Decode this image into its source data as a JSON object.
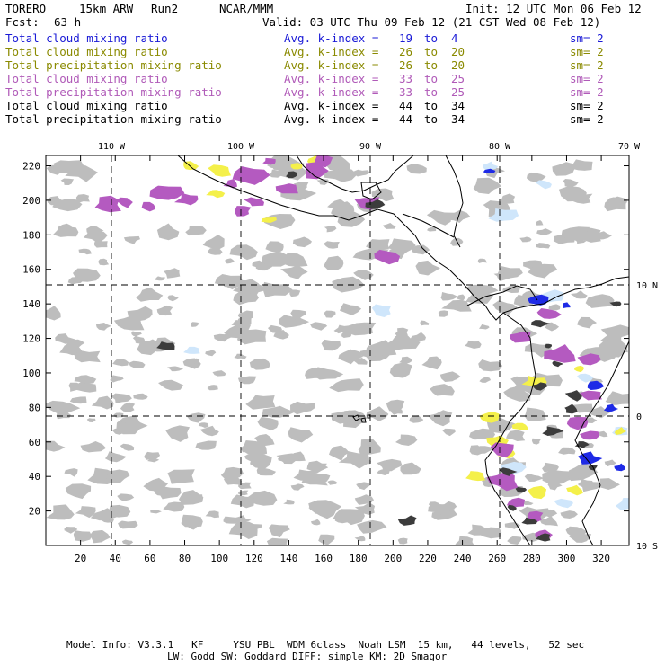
{
  "header": {
    "model": "TORERO",
    "resolution": "15km ARW",
    "run": "Run2",
    "org": "NCAR/MMM",
    "init": "Init: 12 UTC Mon 06 Feb 12",
    "fcst_label": "Fcst:",
    "fcst_value": "63 h",
    "valid": "Valid: 03 UTC Thu 09 Feb 12 (21 CST Wed 08 Feb 12)"
  },
  "legend": [
    {
      "field": "Total cloud mixing ratio",
      "avg": "Avg. k-index =",
      "k1": "19",
      "to": "to",
      "k2": "4",
      "sm": "sm= 2",
      "color": "#1a1ad6"
    },
    {
      "field": "Total cloud mixing ratio",
      "avg": "Avg. k-index =",
      "k1": "26",
      "to": "to",
      "k2": "20",
      "sm": "sm= 2",
      "color": "#8a8a00"
    },
    {
      "field": "Total precipitation mixing ratio",
      "avg": "Avg. k-index =",
      "k1": "26",
      "to": "to",
      "k2": "20",
      "sm": "sm= 2",
      "color": "#8a8a00"
    },
    {
      "field": "Total cloud mixing ratio",
      "avg": "Avg. k-index =",
      "k1": "33",
      "to": "to",
      "k2": "25",
      "sm": "sm= 2",
      "color": "#b05ab8"
    },
    {
      "field": "Total precipitation mixing ratio",
      "avg": "Avg. k-index =",
      "k1": "33",
      "to": "to",
      "k2": "25",
      "sm": "sm= 2",
      "color": "#b05ab8"
    },
    {
      "field": "Total cloud mixing ratio",
      "avg": "Avg. k-index =",
      "k1": "44",
      "to": "to",
      "k2": "34",
      "sm": "sm= 2",
      "color": "#000000"
    },
    {
      "field": "Total precipitation mixing ratio",
      "avg": "Avg. k-index =",
      "k1": "44",
      "to": "to",
      "k2": "34",
      "sm": "sm= 2",
      "color": "#000000"
    }
  ],
  "map": {
    "lon_labels": [
      "110 W",
      "100 W",
      "90 W",
      "80 W",
      "70 W"
    ],
    "lat_labels": [
      "10 N",
      "0",
      "10 S"
    ],
    "y_ticks": [
      "220",
      "200",
      "180",
      "160",
      "140",
      "120",
      "100",
      "80",
      "60",
      "40",
      "20"
    ],
    "x_ticks": [
      "20",
      "40",
      "60",
      "80",
      "100",
      "120",
      "140",
      "160",
      "180",
      "200",
      "220",
      "240",
      "260",
      "280",
      "300",
      "320"
    ],
    "colors": {
      "gray_light": "#bdbdbd",
      "gray_dark": "#3c3c3c",
      "yellow": "#f4f04a",
      "purple": "#b45ac0",
      "blue_light": "#cfe6fb",
      "blue": "#1e2ae6",
      "coast": "#000000",
      "grid": "#000000"
    }
  },
  "footer": {
    "line1": "Model Info: V3.3.1   KF     YSU PBL  WDM 6class  Noah LSM  15 km,   44 levels,   52 sec",
    "line2": "LW: Godd SW: Goddard DIFF: simple KM: 2D Smagor"
  }
}
